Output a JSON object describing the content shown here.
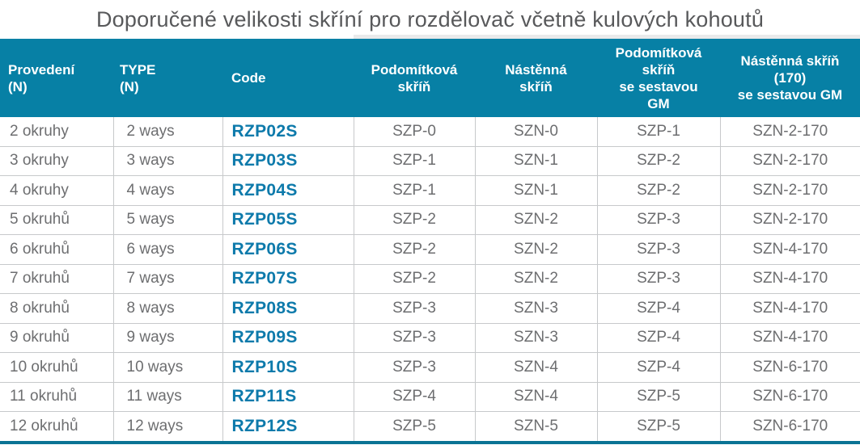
{
  "title": "Doporučené velikosti skříní pro rozdělovač včetně kulových kohoutů",
  "colors": {
    "header_background": "#0780a5",
    "header_text": "#ffffff",
    "code_text": "#0d7aab",
    "body_text": "#6d6e70",
    "title_text": "#58595b",
    "grid_line": "#c7c9cb",
    "bottom_bar": "#0a7394",
    "header_top_strip": "#e9eaeb"
  },
  "table": {
    "columns": [
      {
        "id": "provedeni",
        "label": "Provedení\n(N)",
        "align": "left"
      },
      {
        "id": "type",
        "label": "TYPE\n(N)",
        "align": "left"
      },
      {
        "id": "code",
        "label": "Code",
        "align": "left"
      },
      {
        "id": "podomitkova-skrin",
        "label": "Podomítková\nskříň",
        "align": "center"
      },
      {
        "id": "nastenna-skrin",
        "label": "Nástěnná\nskříň",
        "align": "center"
      },
      {
        "id": "podomitkova-skrin-gm",
        "label": "Podomítková\nskříň\nse sestavou\nGM",
        "align": "center"
      },
      {
        "id": "nastenna-skrin-170-gm",
        "label": "Nástěnná skříň\n(170)\nse sestavou GM",
        "align": "center"
      }
    ],
    "rows": [
      [
        "2 okruhy",
        "2 ways",
        "RZP02S",
        "SZP-0",
        "SZN-0",
        "SZP-1",
        "SZN-2-170"
      ],
      [
        "3 okruhy",
        "3 ways",
        "RZP03S",
        "SZP-1",
        "SZN-1",
        "SZP-2",
        "SZN-2-170"
      ],
      [
        "4 okruhy",
        "4 ways",
        "RZP04S",
        "SZP-1",
        "SZN-1",
        "SZP-2",
        "SZN-2-170"
      ],
      [
        "5 okruhů",
        "5 ways",
        "RZP05S",
        "SZP-2",
        "SZN-2",
        "SZP-3",
        "SZN-2-170"
      ],
      [
        "6 okruhů",
        "6 ways",
        "RZP06S",
        "SZP-2",
        "SZN-2",
        "SZP-3",
        "SZN-4-170"
      ],
      [
        "7 okruhů",
        "7 ways",
        "RZP07S",
        "SZP-2",
        "SZN-2",
        "SZP-3",
        "SZN-4-170"
      ],
      [
        "8 okruhů",
        "8 ways",
        "RZP08S",
        "SZP-3",
        "SZN-3",
        "SZP-4",
        "SZN-4-170"
      ],
      [
        "9 okruhů",
        "9 ways",
        "RZP09S",
        "SZP-3",
        "SZN-3",
        "SZP-4",
        "SZN-4-170"
      ],
      [
        "10 okruhů",
        "10 ways",
        "RZP10S",
        "SZP-3",
        "SZN-4",
        "SZP-4",
        "SZN-6-170"
      ],
      [
        "11 okruhů",
        "11 ways",
        "RZP11S",
        "SZP-4",
        "SZN-4",
        "SZP-5",
        "SZN-6-170"
      ],
      [
        "12 okruhů",
        "12 ways",
        "RZP12S",
        "SZP-5",
        "SZN-5",
        "SZP-5",
        "SZN-6-170"
      ]
    ]
  }
}
